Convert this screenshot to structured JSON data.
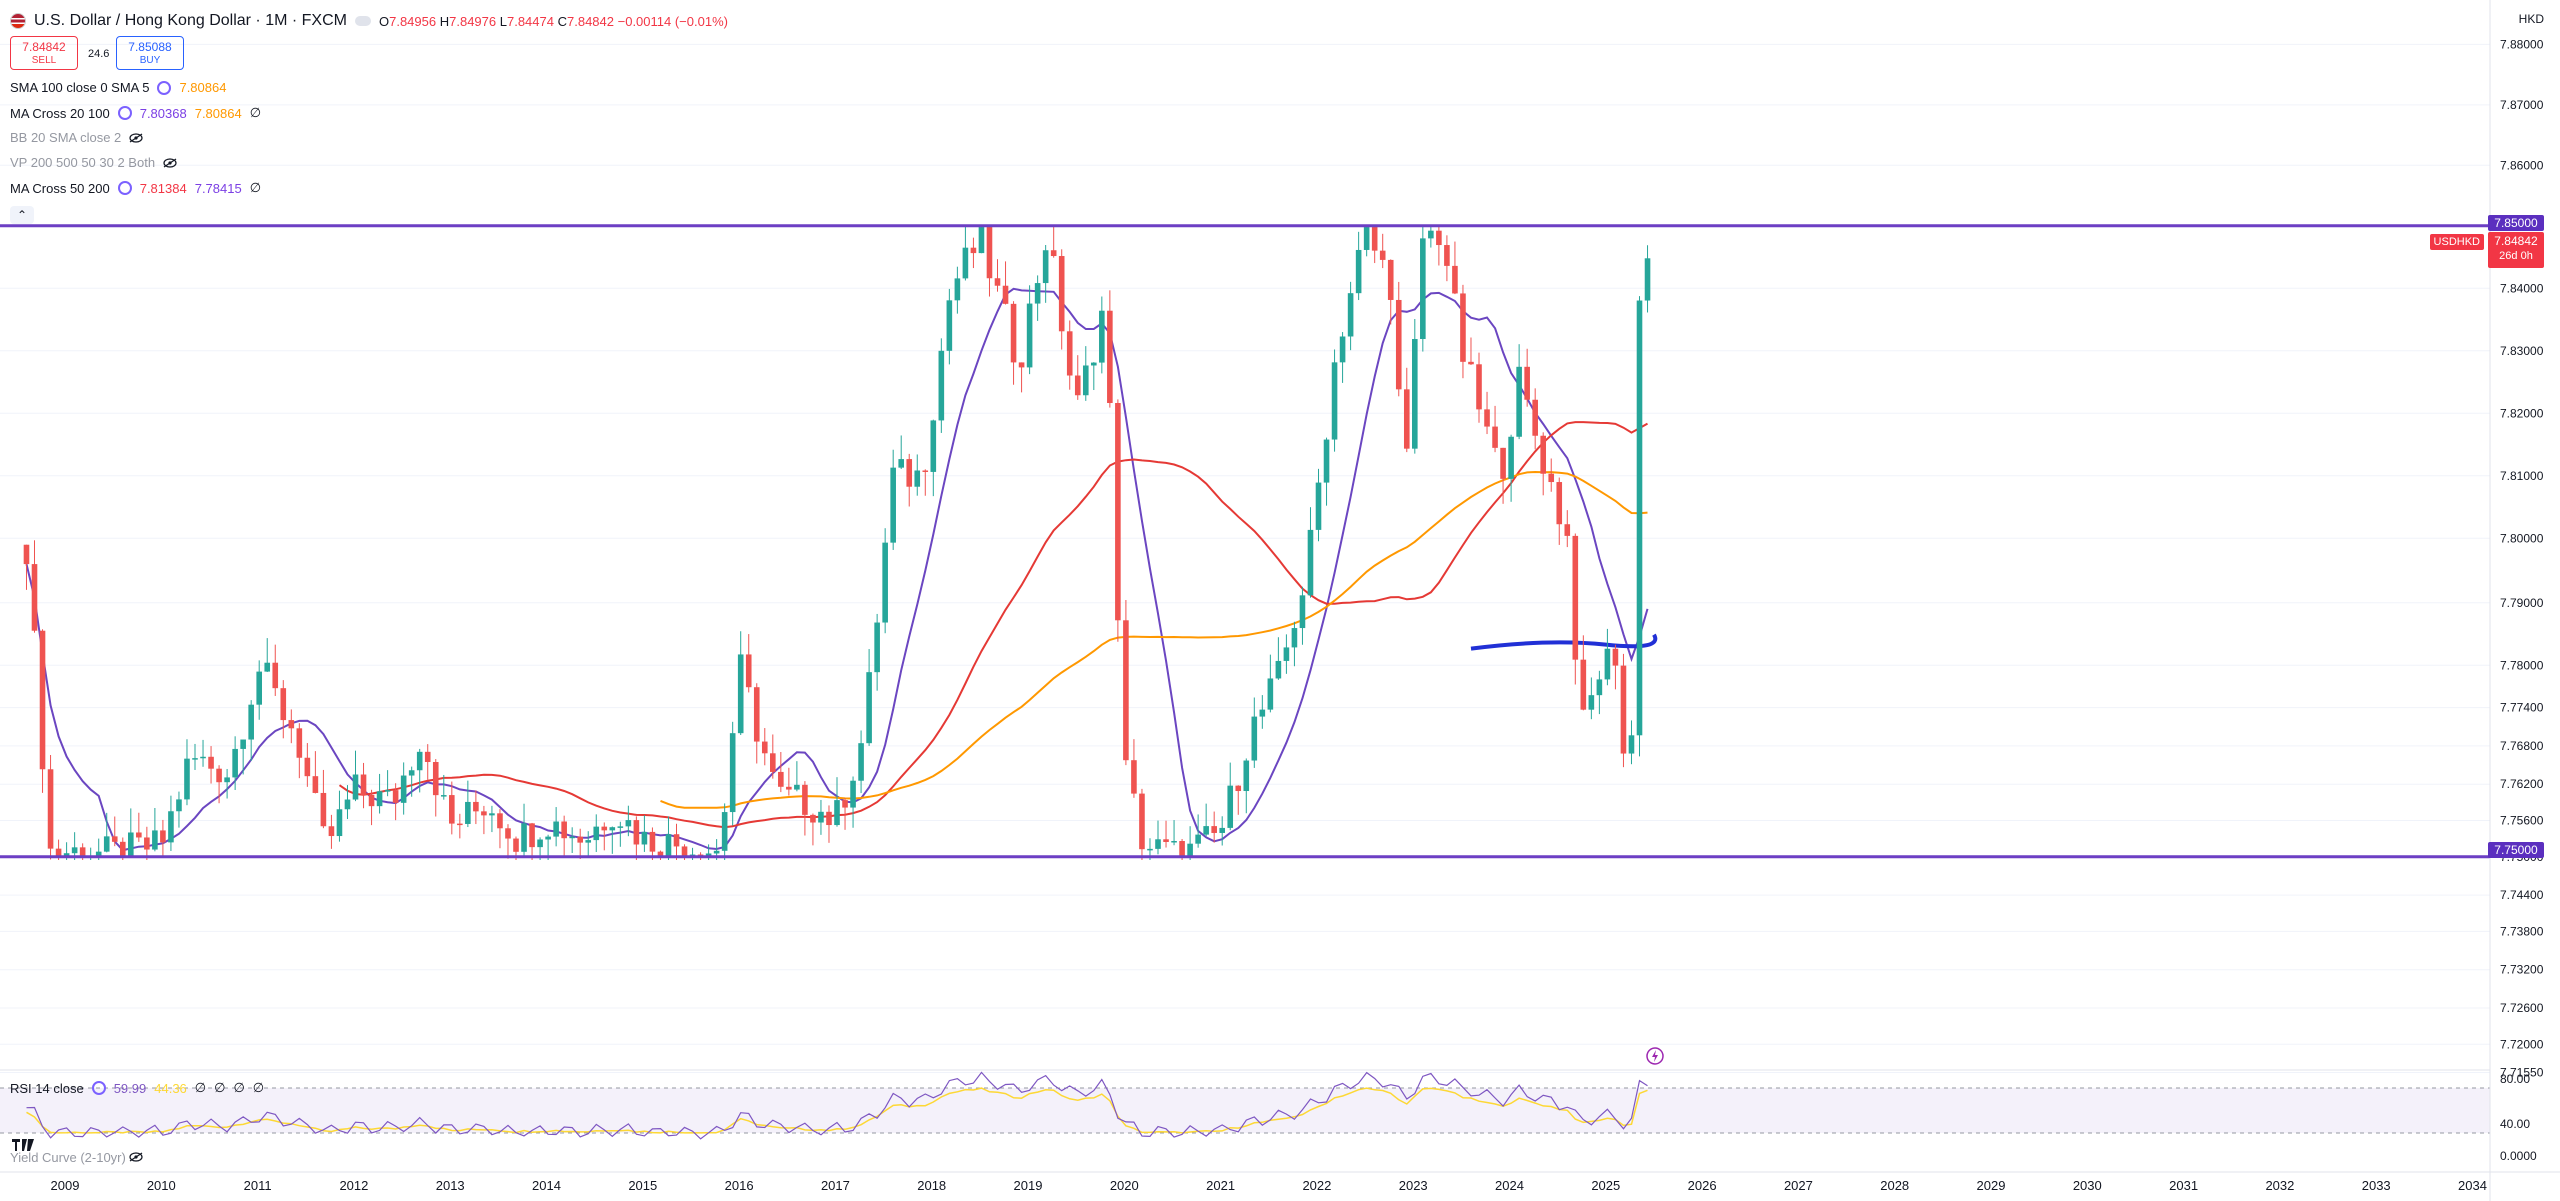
{
  "header": {
    "title": "U.S. Dollar / Hong Kong Dollar · 1M · FXCM",
    "ohlc": [
      {
        "label": "O",
        "value": "7.84956"
      },
      {
        "label": "H",
        "value": "7.84976"
      },
      {
        "label": "L",
        "value": "7.84474"
      },
      {
        "label": "C",
        "value": "7.84842"
      }
    ],
    "change": "−0.00114 (−0.01%)",
    "currency": "HKD"
  },
  "trade": {
    "sell_price": "7.84842",
    "sell_label": "SELL",
    "spread": "24.6",
    "buy_price": "7.85088",
    "buy_label": "BUY"
  },
  "indicators": [
    {
      "name": "SMA 100 close 0 SMA 5",
      "values": [
        "7.80864"
      ],
      "colors": [
        "#ff9800"
      ],
      "hidden": false
    },
    {
      "name": "MA Cross 20 100",
      "values": [
        "7.80368",
        "7.80864",
        "∅"
      ],
      "colors": [
        "#7b3fe4",
        "#ff9800",
        "#131722"
      ],
      "hidden": false
    },
    {
      "name": "BB 20 SMA close 2",
      "values": [],
      "colors": [],
      "hidden": true
    },
    {
      "name": "VP 200 500 50 30 2 Both",
      "values": [],
      "colors": [],
      "hidden": true
    },
    {
      "name": "MA Cross 50 200",
      "values": [
        "7.81384",
        "7.78415",
        "∅"
      ],
      "colors": [
        "#f23645",
        "#7b3fe4",
        "#131722"
      ],
      "hidden": false
    }
  ],
  "rsi": {
    "name": "RSI 14 close",
    "value": "59.99",
    "ma": "44.36",
    "extras": [
      "∅",
      "∅",
      "∅",
      "∅"
    ]
  },
  "yield_curve_label": "Yield Curve (2-10yr)",
  "price_tags": {
    "upper_level": "7.85000",
    "last_price": "7.84842",
    "countdown": "26d 0h",
    "symbol": "USDHKD",
    "lower_level": "7.75000"
  },
  "colors": {
    "up": "#26a69a",
    "down": "#ef5350",
    "level_line": "#6c3fc4",
    "ma_fast": "#6b46c1",
    "ma_red": "#e53935",
    "ma_orange": "#ff9800",
    "profile": "#2130d6",
    "rsi_line": "#7e57c2",
    "rsi_ma": "#fdd835"
  },
  "chart_data": {
    "type": "candlestick",
    "symbol": "USDHKD",
    "interval": "1M",
    "y_ticks": [
      "7.88000",
      "7.87000",
      "7.86000",
      "7.85000",
      "7.84000",
      "7.83000",
      "7.82000",
      "7.81000",
      "7.80000",
      "7.79000",
      "7.78000",
      "7.77400",
      "7.76800",
      "7.76200",
      "7.75600",
      "7.75000",
      "7.74400",
      "7.73800",
      "7.73200",
      "7.72600",
      "7.72000",
      "7.71550"
    ],
    "x_ticks": [
      "2009",
      "2010",
      "2011",
      "2012",
      "2013",
      "2014",
      "2015",
      "2016",
      "2017",
      "2018",
      "2019",
      "2020",
      "2021",
      "2022",
      "2023",
      "2024",
      "2025",
      "2026",
      "2027",
      "2028",
      "2029",
      "2030",
      "2031",
      "2032",
      "2033",
      "2034"
    ],
    "horizontal_levels": [
      7.85,
      7.75
    ],
    "close_path": [
      {
        "t": 2008.6,
        "c": 7.799
      },
      {
        "t": 2008.85,
        "c": 7.751
      },
      {
        "t": 2009.5,
        "c": 7.7505
      },
      {
        "t": 2010.0,
        "c": 7.752
      },
      {
        "t": 2010.3,
        "c": 7.766
      },
      {
        "t": 2010.7,
        "c": 7.764
      },
      {
        "t": 2011.0,
        "c": 7.78
      },
      {
        "t": 2011.4,
        "c": 7.77
      },
      {
        "t": 2011.7,
        "c": 7.7515
      },
      {
        "t": 2012.0,
        "c": 7.761
      },
      {
        "t": 2012.4,
        "c": 7.759
      },
      {
        "t": 2012.7,
        "c": 7.77
      },
      {
        "t": 2013.0,
        "c": 7.755
      },
      {
        "t": 2013.4,
        "c": 7.759
      },
      {
        "t": 2013.7,
        "c": 7.753
      },
      {
        "t": 2014.0,
        "c": 7.756
      },
      {
        "t": 2014.4,
        "c": 7.753
      },
      {
        "t": 2014.7,
        "c": 7.758
      },
      {
        "t": 2015.0,
        "c": 7.753
      },
      {
        "t": 2015.4,
        "c": 7.752
      },
      {
        "t": 2015.8,
        "c": 7.751
      },
      {
        "t": 2016.0,
        "c": 7.78
      },
      {
        "t": 2016.4,
        "c": 7.76
      },
      {
        "t": 2016.7,
        "c": 7.759
      },
      {
        "t": 2017.0,
        "c": 7.756
      },
      {
        "t": 2017.3,
        "c": 7.77
      },
      {
        "t": 2017.6,
        "c": 7.81
      },
      {
        "t": 2017.9,
        "c": 7.81
      },
      {
        "t": 2018.2,
        "c": 7.84
      },
      {
        "t": 2018.5,
        "c": 7.848
      },
      {
        "t": 2018.9,
        "c": 7.828
      },
      {
        "t": 2019.2,
        "c": 7.849
      },
      {
        "t": 2019.5,
        "c": 7.82
      },
      {
        "t": 2019.8,
        "c": 7.838
      },
      {
        "t": 2020.0,
        "c": 7.765
      },
      {
        "t": 2020.2,
        "c": 7.752
      },
      {
        "t": 2020.6,
        "c": 7.75
      },
      {
        "t": 2021.0,
        "c": 7.754
      },
      {
        "t": 2021.3,
        "c": 7.77
      },
      {
        "t": 2021.6,
        "c": 7.778
      },
      {
        "t": 2021.9,
        "c": 7.795
      },
      {
        "t": 2022.2,
        "c": 7.83
      },
      {
        "t": 2022.5,
        "c": 7.849
      },
      {
        "t": 2022.8,
        "c": 7.84
      },
      {
        "t": 2022.9,
        "c": 7.805
      },
      {
        "t": 2023.1,
        "c": 7.848
      },
      {
        "t": 2023.3,
        "c": 7.849
      },
      {
        "t": 2023.5,
        "c": 7.83
      },
      {
        "t": 2023.7,
        "c": 7.82
      },
      {
        "t": 2023.9,
        "c": 7.81
      },
      {
        "t": 2024.1,
        "c": 7.825
      },
      {
        "t": 2024.4,
        "c": 7.81
      },
      {
        "t": 2024.6,
        "c": 7.8
      },
      {
        "t": 2024.75,
        "c": 7.77
      },
      {
        "t": 2024.95,
        "c": 7.78
      },
      {
        "t": 2025.1,
        "c": 7.782
      },
      {
        "t": 2025.25,
        "c": 7.755
      },
      {
        "t": 2025.35,
        "c": 7.84
      },
      {
        "t": 2025.5,
        "c": 7.8484
      }
    ],
    "series": [
      {
        "name": "SMA 100 close 0 SMA 5",
        "last": 7.80864
      },
      {
        "name": "MA Cross 20 100",
        "last": 7.80368
      },
      {
        "name": "MA Cross 50 200",
        "last": 7.81384
      }
    ],
    "rsi": {
      "y_ticks": [
        "80.00",
        "40.00"
      ],
      "last": 59.99,
      "ma": 44.36
    },
    "yield_curve": {
      "y_ticks": [
        "0.0000"
      ]
    }
  }
}
